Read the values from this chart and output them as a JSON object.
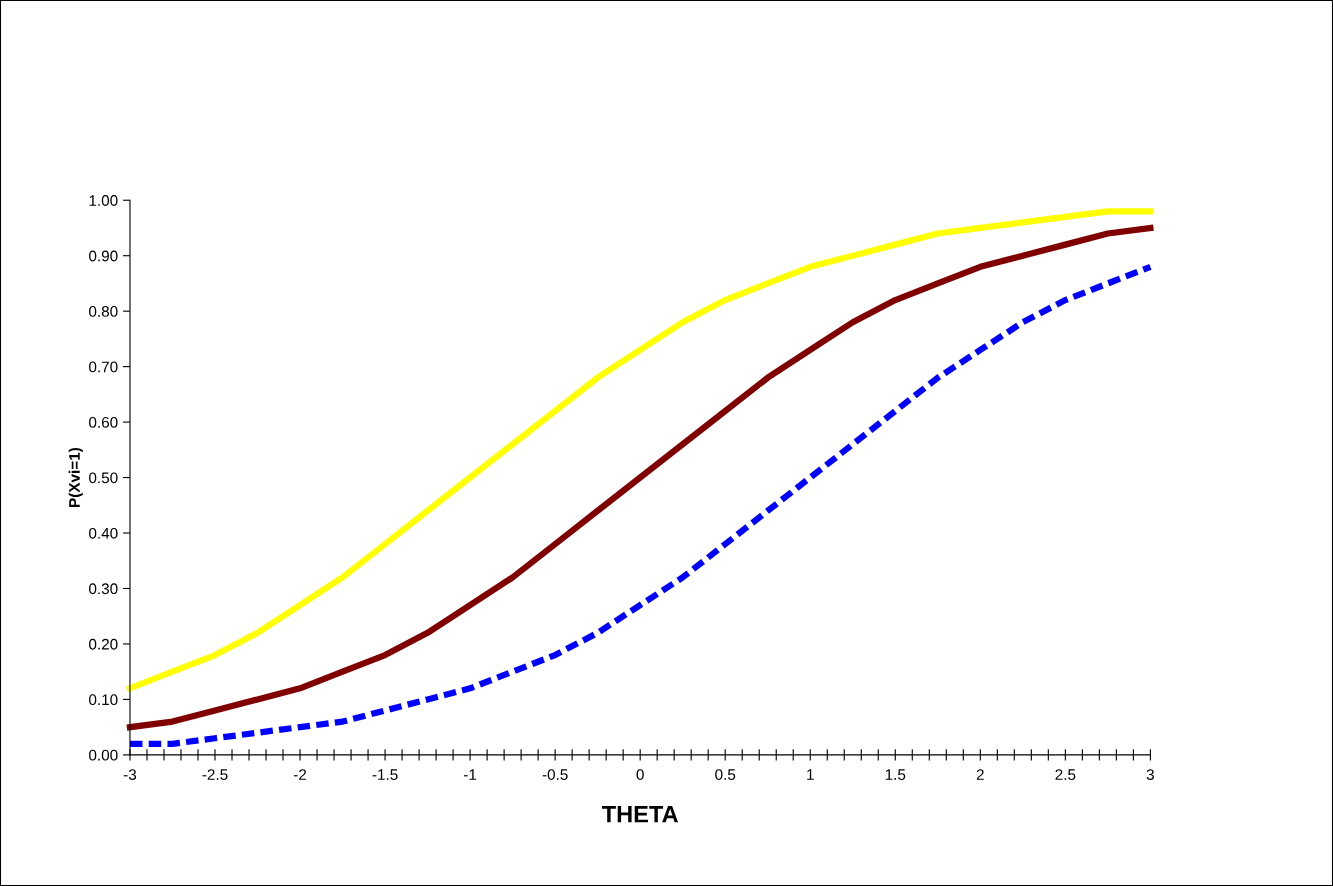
{
  "chart_data": {
    "type": "line",
    "xlabel": "THETA",
    "ylabel": "P(Xvi=1)",
    "x": [
      -3,
      -2.75,
      -2.5,
      -2.25,
      -2,
      -1.75,
      -1.5,
      -1.25,
      -1,
      -0.75,
      -0.5,
      -0.25,
      0,
      0.25,
      0.5,
      0.75,
      1,
      1.25,
      1.5,
      1.75,
      2,
      2.25,
      2.5,
      2.75,
      3
    ],
    "series": [
      {
        "color": "#ffff00",
        "line_style": "solid",
        "values": [
          0.12,
          0.15,
          0.18,
          0.22,
          0.27,
          0.32,
          0.38,
          0.44,
          0.5,
          0.56,
          0.62,
          0.68,
          0.73,
          0.78,
          0.82,
          0.85,
          0.88,
          0.9,
          0.92,
          0.94,
          0.95,
          0.96,
          0.97,
          0.98,
          0.98
        ]
      },
      {
        "color": "#800000",
        "line_style": "solid",
        "values": [
          0.05,
          0.06,
          0.08,
          0.1,
          0.12,
          0.15,
          0.18,
          0.22,
          0.27,
          0.32,
          0.38,
          0.44,
          0.5,
          0.56,
          0.62,
          0.68,
          0.73,
          0.78,
          0.82,
          0.85,
          0.88,
          0.9,
          0.92,
          0.94,
          0.95
        ]
      },
      {
        "color": "#0000ff",
        "line_style": "dashed",
        "values": [
          0.02,
          0.02,
          0.03,
          0.04,
          0.05,
          0.06,
          0.08,
          0.1,
          0.12,
          0.15,
          0.18,
          0.22,
          0.27,
          0.32,
          0.38,
          0.44,
          0.5,
          0.56,
          0.62,
          0.68,
          0.73,
          0.78,
          0.82,
          0.85,
          0.88
        ]
      }
    ],
    "xlim": [
      -3,
      3
    ],
    "xticks": [
      {
        "value": -3,
        "label": "-3"
      },
      {
        "value": -2.9,
        "label": null
      },
      {
        "value": -2.8,
        "label": null
      },
      {
        "value": -2.7,
        "label": null
      },
      {
        "value": -2.6,
        "label": null
      },
      {
        "value": -2.5,
        "label": "-2.5"
      },
      {
        "value": -2.4,
        "label": null
      },
      {
        "value": -2.3,
        "label": null
      },
      {
        "value": -2.2,
        "label": null
      },
      {
        "value": -2.1,
        "label": null
      },
      {
        "value": -2,
        "label": "-2"
      },
      {
        "value": -1.9,
        "label": null
      },
      {
        "value": -1.8,
        "label": null
      },
      {
        "value": -1.7,
        "label": null
      },
      {
        "value": -1.6,
        "label": null
      },
      {
        "value": -1.5,
        "label": "-1.5"
      },
      {
        "value": -1.4,
        "label": null
      },
      {
        "value": -1.3,
        "label": null
      },
      {
        "value": -1.2,
        "label": null
      },
      {
        "value": -1.1,
        "label": null
      },
      {
        "value": -1,
        "label": "-1"
      },
      {
        "value": -0.9,
        "label": null
      },
      {
        "value": -0.8,
        "label": null
      },
      {
        "value": -0.7,
        "label": null
      },
      {
        "value": -0.6,
        "label": null
      },
      {
        "value": -0.5,
        "label": "-0.5"
      },
      {
        "value": -0.4,
        "label": null
      },
      {
        "value": -0.3,
        "label": null
      },
      {
        "value": -0.2,
        "label": null
      },
      {
        "value": -0.1,
        "label": null
      },
      {
        "value": 0,
        "label": "0"
      },
      {
        "value": 0.1,
        "label": null
      },
      {
        "value": 0.2,
        "label": null
      },
      {
        "value": 0.3,
        "label": null
      },
      {
        "value": 0.4,
        "label": null
      },
      {
        "value": 0.5,
        "label": "0.5"
      },
      {
        "value": 0.6,
        "label": null
      },
      {
        "value": 0.7,
        "label": null
      },
      {
        "value": 0.8,
        "label": null
      },
      {
        "value": 0.9,
        "label": null
      },
      {
        "value": 1,
        "label": "1"
      },
      {
        "value": 1.1,
        "label": null
      },
      {
        "value": 1.2,
        "label": null
      },
      {
        "value": 1.3,
        "label": null
      },
      {
        "value": 1.4,
        "label": null
      },
      {
        "value": 1.5,
        "label": "1.5"
      },
      {
        "value": 1.6,
        "label": null
      },
      {
        "value": 1.7,
        "label": null
      },
      {
        "value": 1.8,
        "label": null
      },
      {
        "value": 1.9,
        "label": null
      },
      {
        "value": 2,
        "label": "2"
      },
      {
        "value": 2.1,
        "label": null
      },
      {
        "value": 2.2,
        "label": null
      },
      {
        "value": 2.3,
        "label": null
      },
      {
        "value": 2.4,
        "label": null
      },
      {
        "value": 2.5,
        "label": "2.5"
      },
      {
        "value": 2.6,
        "label": null
      },
      {
        "value": 2.7,
        "label": null
      },
      {
        "value": 2.8,
        "label": null
      },
      {
        "value": 2.9,
        "label": null
      },
      {
        "value": 3,
        "label": "3"
      }
    ],
    "ylim": [
      0,
      1
    ],
    "yticks": [
      {
        "value": 0,
        "label": "0.00"
      },
      {
        "value": 0.1,
        "label": "0.10"
      },
      {
        "value": 0.2,
        "label": "0.20"
      },
      {
        "value": 0.3,
        "label": "0.30"
      },
      {
        "value": 0.4,
        "label": "0.40"
      },
      {
        "value": 0.5,
        "label": "0.50"
      },
      {
        "value": 0.6,
        "label": "0.60"
      },
      {
        "value": 0.7,
        "label": "0.70"
      },
      {
        "value": 0.8,
        "label": "0.80"
      },
      {
        "value": 0.9,
        "label": "0.90"
      },
      {
        "value": 1,
        "label": "1.00"
      }
    ],
    "grid": false,
    "marker": "none"
  }
}
